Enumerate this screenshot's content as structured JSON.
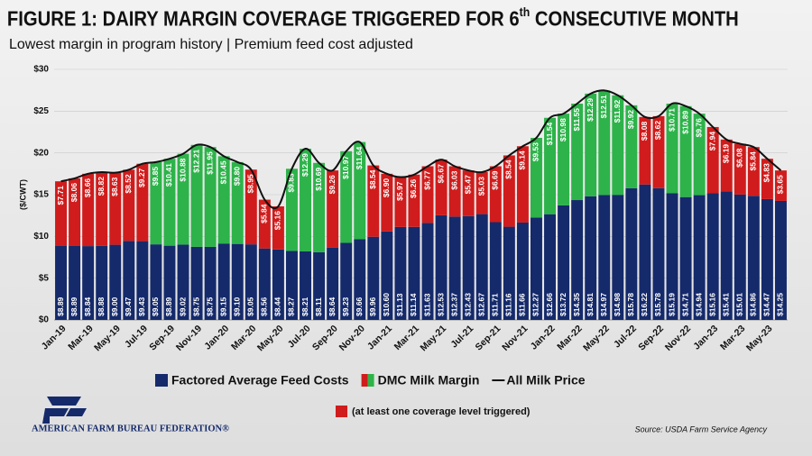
{
  "chart_data": {
    "type": "stacked-bar-line",
    "title": [
      "FIGURE 1: DAIRY MARGIN COVERAGE TRIGGERED FOR 6",
      "th",
      " CONSECUTIVE MONTH"
    ],
    "subtitle": "Lowest margin in program history | Premium feed cost adjusted",
    "y_label": "($/CWT)",
    "note": "(at least one coverage level triggered)",
    "note_color": "#d01c1c",
    "source": "Source: USDA Farm Service Agency",
    "organization": "AMERICAN FARM BUREAU FEDERATION®",
    "categories": [
      "Jan-19",
      null,
      "Mar-19",
      null,
      "May-19",
      null,
      "Jul-19",
      null,
      "Sep-19",
      null,
      "Nov-19",
      null,
      "Jan-20",
      null,
      "Mar-20",
      null,
      "May-20",
      null,
      "Jul-20",
      null,
      "Sep-20",
      null,
      "Nov-20",
      null,
      "Jan-21",
      null,
      "Mar-21",
      null,
      "May-21",
      null,
      "Jul-21",
      null,
      "Sep-21",
      null,
      "Nov-21",
      null,
      "Jan-22",
      null,
      "Mar-22",
      null,
      "May-22",
      null,
      "Jul-22",
      null,
      "Sep-22",
      null,
      "Nov-22",
      null,
      "Jan-23",
      null,
      "Mar-23",
      null,
      "May-23",
      null
    ],
    "ylim": [
      0,
      30
    ],
    "yticks": [
      {
        "value": 0,
        "label": "$0"
      },
      {
        "value": 5,
        "label": "$5"
      },
      {
        "value": 10,
        "label": "$10"
      },
      {
        "value": 15,
        "label": "$15"
      },
      {
        "value": 20,
        "label": "$20"
      },
      {
        "value": 25,
        "label": "$25"
      },
      {
        "value": 30,
        "label": "$30"
      }
    ],
    "grid": true,
    "series": [
      {
        "name": "Factored Average Feed Costs",
        "kind": "bar",
        "color": "#152a6b",
        "values": [
          8.89,
          8.89,
          8.84,
          8.88,
          9.0,
          9.47,
          9.43,
          9.05,
          8.89,
          9.02,
          8.75,
          8.75,
          9.15,
          9.1,
          9.05,
          8.56,
          8.44,
          8.27,
          8.21,
          8.11,
          8.64,
          9.23,
          9.66,
          9.96,
          10.6,
          11.13,
          11.14,
          11.63,
          12.53,
          12.37,
          12.43,
          12.67,
          11.71,
          11.16,
          11.66,
          12.27,
          12.66,
          13.72,
          14.35,
          14.81,
          14.97,
          14.98,
          15.78,
          16.22,
          15.78,
          15.19,
          14.71,
          14.94,
          15.16,
          15.41,
          15.01,
          14.86,
          14.47,
          14.25
        ],
        "value_labels": [
          "$8.89",
          "$8.89",
          "$8.84",
          "$8.88",
          "$9.00",
          "$9.47",
          "$9.43",
          "$9.05",
          "$8.89",
          "$9.02",
          "$8.75",
          "$8.75",
          "$9.15",
          "$9.10",
          "$9.05",
          "$8.56",
          "$8.44",
          "$8.27",
          "$8.21",
          "$8.11",
          "$8.64",
          "$9.23",
          "$9.66",
          "$9.96",
          "$10.60",
          "$11.13",
          "$11.14",
          "$11.63",
          "$12.53",
          "$12.37",
          "$12.43",
          "$12.67",
          "$11.71",
          "$11.16",
          "$11.66",
          "$12.27",
          "$12.66",
          "$13.72",
          "$14.35",
          "$14.81",
          "$14.97",
          "$14.98",
          "$15.78",
          "$16.22",
          "$15.78",
          "$15.19",
          "$14.71",
          "$14.94",
          "$15.16",
          "$15.41",
          "$15.01",
          "$14.86",
          "$14.47",
          "$14.25"
        ]
      },
      {
        "name": "DMC Milk Margin",
        "kind": "bar",
        "color": "#2db34a",
        "alt_color": "#d01c1c",
        "values": [
          7.71,
          8.06,
          8.66,
          8.82,
          8.63,
          8.52,
          9.27,
          9.85,
          10.41,
          10.88,
          12.21,
          11.95,
          10.45,
          9.8,
          8.95,
          5.84,
          5.16,
          9.83,
          12.29,
          10.69,
          9.26,
          10.97,
          11.64,
          8.54,
          6.9,
          5.97,
          6.26,
          6.77,
          6.67,
          6.03,
          5.47,
          5.03,
          6.69,
          8.54,
          9.14,
          9.53,
          11.54,
          10.98,
          11.55,
          12.29,
          12.51,
          11.92,
          9.92,
          8.08,
          8.62,
          10.71,
          10.89,
          9.76,
          7.94,
          6.19,
          6.08,
          5.84,
          4.83,
          3.65
        ],
        "value_labels": [
          "$7.71",
          "$8.06",
          "$8.66",
          "$8.82",
          "$8.63",
          "$8.52",
          "$9.27",
          "$9.85",
          "$10.41",
          "$10.88",
          "$12.21",
          "$11.95",
          "$10.45",
          "$9.80",
          "$8.95",
          "$5.84",
          "$5.16",
          "$9.83",
          "$12.29",
          "$10.69",
          "$9.26",
          "$10.97",
          "$11.64",
          "$8.54",
          "$6.90",
          "$5.97",
          "$6.26",
          "$6.77",
          "$6.67",
          "$6.03",
          "$5.47",
          "$5.03",
          "$6.69",
          "$8.54",
          "$9.14",
          "$9.53",
          "$11.54",
          "$10.98",
          "$11.55",
          "$12.29",
          "$12.51",
          "$11.92",
          "$9.92",
          "$8.08",
          "$8.62",
          "$10.71",
          "$10.89",
          "$9.76",
          "$7.94",
          "$6.19",
          "$6.08",
          "$5.84",
          "$4.83",
          "$3.65"
        ],
        "triggered": [
          true,
          true,
          true,
          true,
          true,
          true,
          true,
          false,
          false,
          false,
          false,
          false,
          false,
          false,
          true,
          true,
          true,
          false,
          false,
          false,
          true,
          false,
          false,
          true,
          true,
          true,
          true,
          true,
          true,
          true,
          true,
          true,
          true,
          true,
          true,
          false,
          false,
          false,
          false,
          false,
          false,
          false,
          false,
          true,
          true,
          false,
          false,
          false,
          true,
          true,
          true,
          true,
          true,
          true
        ]
      },
      {
        "name": "All Milk Price",
        "kind": "line",
        "color": "#111111",
        "values": [
          16.6,
          16.95,
          17.5,
          17.7,
          17.63,
          17.99,
          18.7,
          18.9,
          19.3,
          19.9,
          20.96,
          20.7,
          19.6,
          18.9,
          18.0,
          14.4,
          13.6,
          18.1,
          20.5,
          18.8,
          17.9,
          20.2,
          21.3,
          18.5,
          17.5,
          17.1,
          17.4,
          18.4,
          19.2,
          18.4,
          17.9,
          17.7,
          18.4,
          19.7,
          20.8,
          21.8,
          24.2,
          24.7,
          25.9,
          27.1,
          27.48,
          26.9,
          25.7,
          24.3,
          24.4,
          25.9,
          25.6,
          24.7,
          23.1,
          21.6,
          21.09,
          20.7,
          19.3,
          17.9
        ]
      }
    ]
  }
}
